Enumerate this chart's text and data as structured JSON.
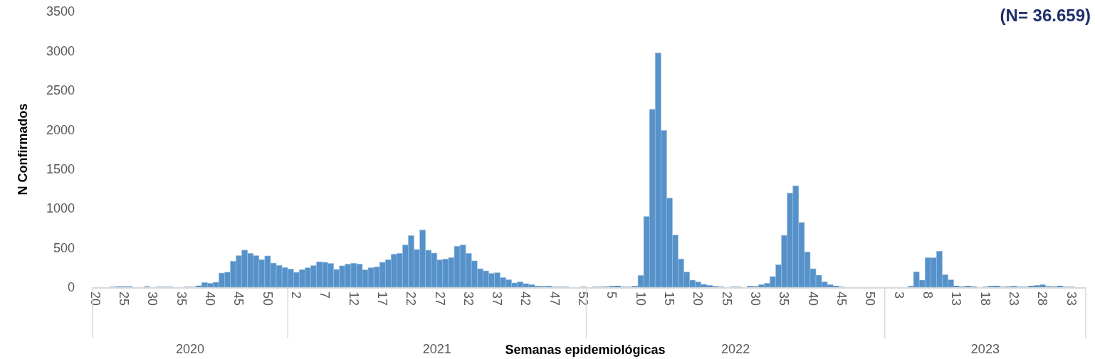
{
  "chart_data": {
    "type": "bar",
    "xlabel": "Semanas epidemiológicas",
    "ylabel": "N Confirmados",
    "annotations": [
      "(N= 36.659)",
      "2020",
      "2021",
      "2022",
      "2023"
    ],
    "categories": [
      "20",
      null,
      null,
      null,
      null,
      "25",
      null,
      null,
      null,
      null,
      "30",
      null,
      null,
      null,
      null,
      "35",
      null,
      null,
      null,
      null,
      "40",
      null,
      null,
      null,
      null,
      "45",
      null,
      null,
      null,
      null,
      "50",
      null,
      null,
      null,
      null,
      "2",
      null,
      null,
      null,
      null,
      "7",
      null,
      null,
      null,
      null,
      "12",
      null,
      null,
      null,
      null,
      "17",
      null,
      null,
      null,
      null,
      "22",
      null,
      null,
      null,
      null,
      "27",
      null,
      null,
      null,
      null,
      "32",
      null,
      null,
      null,
      null,
      "37",
      null,
      null,
      null,
      null,
      "42",
      null,
      null,
      null,
      null,
      "47",
      null,
      null,
      null,
      null,
      "52",
      null,
      null,
      null,
      null,
      "5",
      null,
      null,
      null,
      null,
      "10",
      null,
      null,
      null,
      null,
      "15",
      null,
      null,
      null,
      null,
      "20",
      null,
      null,
      null,
      null,
      "25",
      null,
      null,
      null,
      null,
      "30",
      null,
      null,
      null,
      null,
      "35",
      null,
      null,
      null,
      null,
      "40",
      null,
      null,
      null,
      null,
      "45",
      null,
      null,
      null,
      null,
      "50",
      null,
      null,
      null,
      null,
      "3",
      null,
      null,
      null,
      null,
      "8",
      null,
      null,
      null,
      null,
      "13",
      null,
      null,
      null,
      null,
      "18",
      null,
      null,
      null,
      null,
      "23",
      null,
      null,
      null,
      null,
      "28",
      null,
      null,
      null,
      null,
      "33",
      null,
      null
    ],
    "values": [
      0,
      0,
      0,
      5,
      10,
      10,
      10,
      0,
      0,
      10,
      0,
      5,
      5,
      5,
      0,
      0,
      5,
      5,
      20,
      60,
      50,
      63,
      180,
      190,
      330,
      400,
      470,
      430,
      400,
      350,
      397,
      306,
      277,
      250,
      231,
      189,
      222,
      246,
      274,
      322,
      316,
      301,
      225,
      271,
      292,
      304,
      295,
      219,
      246,
      259,
      316,
      349,
      418,
      430,
      535,
      655,
      478,
      727,
      469,
      433,
      346,
      358,
      376,
      520,
      535,
      430,
      334,
      234,
      207,
      174,
      183,
      123,
      96,
      54,
      69,
      45,
      33,
      15,
      12,
      15,
      6,
      6,
      6,
      0,
      0,
      6,
      0,
      6,
      6,
      9,
      15,
      18,
      6,
      6,
      15,
      150,
      896,
      2257,
      2973,
      1990,
      1130,
      661,
      358,
      192,
      90,
      66,
      36,
      24,
      12,
      6,
      0,
      6,
      6,
      0,
      15,
      12,
      33,
      51,
      135,
      286,
      658,
      1193,
      1284,
      821,
      448,
      234,
      153,
      69,
      33,
      18,
      5,
      0,
      0,
      0,
      0,
      0,
      0,
      0,
      0,
      0,
      0,
      0,
      15,
      195,
      90,
      376,
      373,
      457,
      159,
      93,
      18,
      9,
      18,
      9,
      0,
      6,
      15,
      18,
      6,
      9,
      15,
      6,
      6,
      18,
      24,
      33,
      12,
      9,
      18,
      6,
      6,
      0,
      0
    ],
    "color": "#5692c9",
    "ylim": [
      0,
      3500
    ],
    "yticks": [
      0,
      500,
      1000,
      1500,
      2000,
      2500,
      3000,
      3500
    ]
  }
}
